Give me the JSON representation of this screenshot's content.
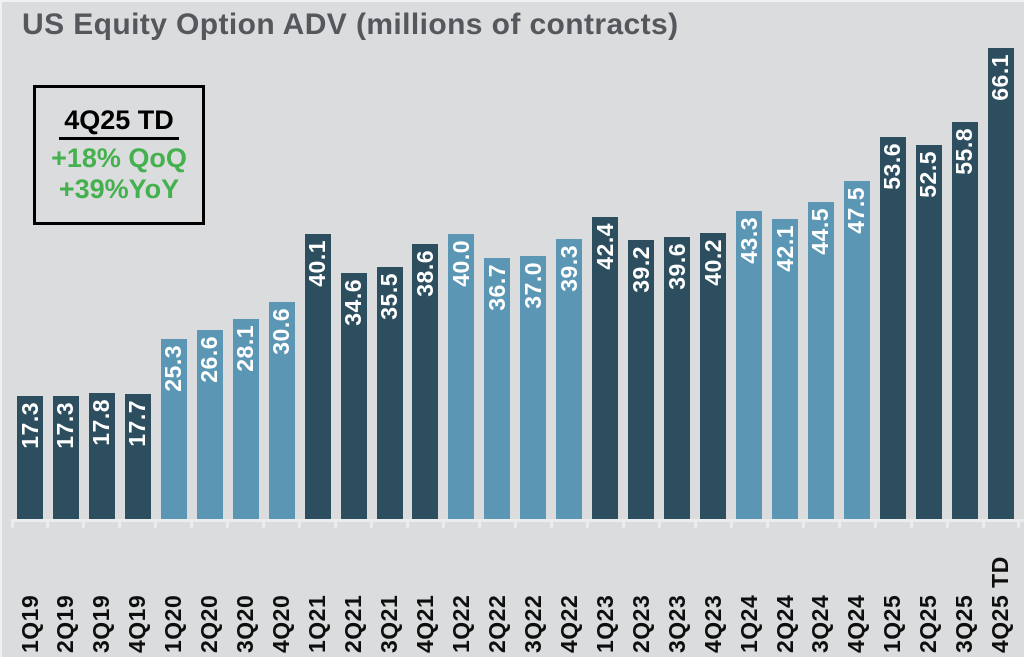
{
  "title": "US Equity Option ADV (millions of contracts)",
  "callout": {
    "heading": "4Q25 TD",
    "qoq": "+18% QoQ",
    "yoy": "+39%YoY"
  },
  "colors": {
    "background": "#dadcdd",
    "dark_bar": "#2d4e5f",
    "light_bar": "#5b97b4",
    "title_text": "#54575c",
    "axis_line": "#eaecee",
    "value_label_text": "#ffffff",
    "axis_label_text": "#0e0e0e",
    "callout_green": "#44b14e",
    "callout_border": "#000000"
  },
  "chart_data": {
    "type": "bar",
    "title": "US Equity Option ADV (millions of contracts)",
    "xlabel": "",
    "ylabel": "",
    "ylim": [
      0,
      66.1
    ],
    "grid": false,
    "legend_position": "none",
    "value_labels_shown": true,
    "categories": [
      "1Q19",
      "2Q19",
      "3Q19",
      "4Q19",
      "1Q20",
      "2Q20",
      "3Q20",
      "4Q20",
      "1Q21",
      "2Q21",
      "3Q21",
      "4Q21",
      "1Q22",
      "2Q22",
      "3Q22",
      "4Q22",
      "1Q23",
      "2Q23",
      "3Q23",
      "4Q23",
      "1Q24",
      "2Q24",
      "3Q24",
      "4Q24",
      "1Q25",
      "2Q25",
      "3Q25",
      "4Q25 TD"
    ],
    "values": [
      17.3,
      17.3,
      17.8,
      17.7,
      25.3,
      26.6,
      28.1,
      30.6,
      40.1,
      34.6,
      35.5,
      38.6,
      40.0,
      36.7,
      37.0,
      39.3,
      42.4,
      39.2,
      39.6,
      40.2,
      43.3,
      42.1,
      44.5,
      47.5,
      53.6,
      52.5,
      55.8,
      66.1
    ],
    "bar_palette": {
      "dark": "#2d4e5f",
      "light": "#5b97b4"
    },
    "bar_color_keys": [
      "dark",
      "dark",
      "dark",
      "dark",
      "light",
      "light",
      "light",
      "light",
      "dark",
      "dark",
      "dark",
      "dark",
      "light",
      "light",
      "light",
      "light",
      "dark",
      "dark",
      "dark",
      "dark",
      "light",
      "light",
      "light",
      "light",
      "dark",
      "dark",
      "dark",
      "dark"
    ]
  }
}
